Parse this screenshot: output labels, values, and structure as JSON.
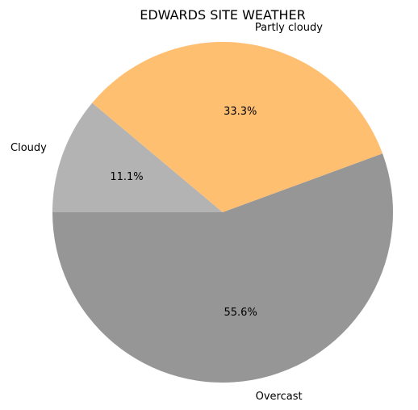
{
  "chart_data": {
    "type": "pie",
    "title": "EDWARDS SITE WEATHER",
    "slices": [
      {
        "label": "Cloudy",
        "value": 11.1,
        "pct_label": "11.1%",
        "color": "#b3b3b3"
      },
      {
        "label": "Partly cloudy",
        "value": 33.3,
        "pct_label": "33.3%",
        "color": "#ffbf71"
      },
      {
        "label": "Overcast",
        "value": 55.6,
        "pct_label": "55.6%",
        "color": "#969696"
      }
    ],
    "start_angle_deg": 180,
    "direction": "clockwise"
  }
}
